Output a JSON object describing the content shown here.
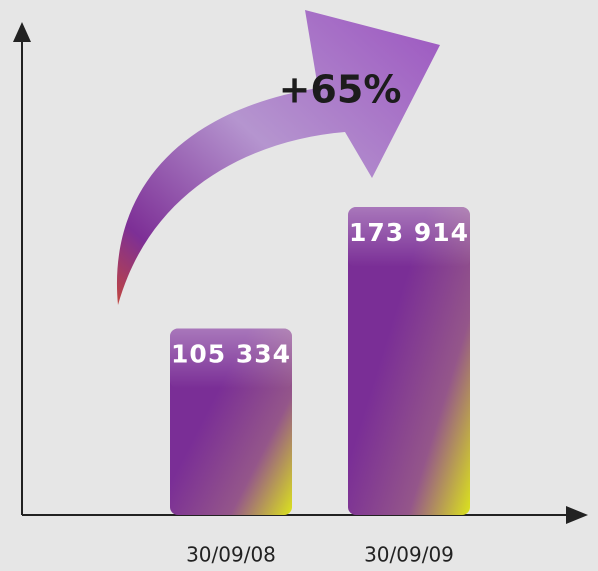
{
  "chart_data": {
    "type": "bar",
    "annotation": "+65%",
    "categories": [
      "30/09/08",
      "30/09/09"
    ],
    "values": [
      105334,
      173914
    ],
    "value_labels": [
      "105 334",
      "173 914"
    ]
  }
}
